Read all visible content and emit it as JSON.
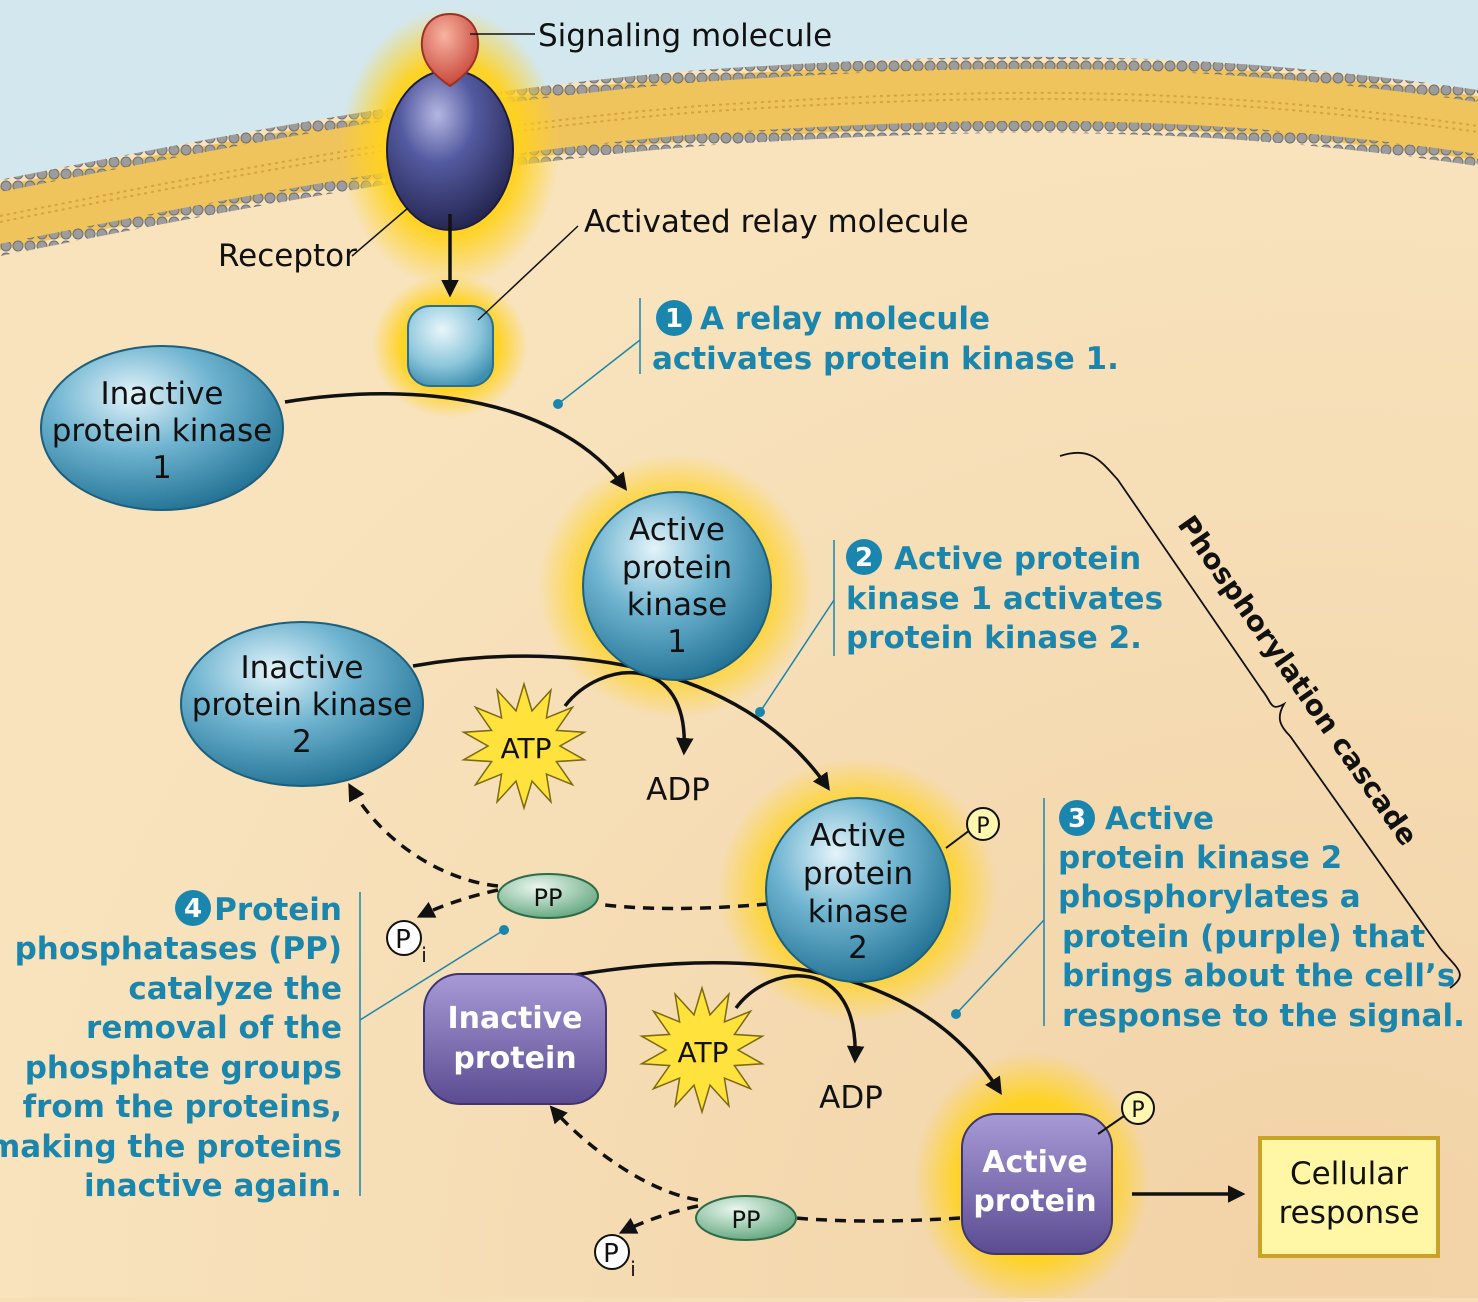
{
  "labels": {
    "signaling_molecule": "Signaling molecule",
    "receptor": "Receptor",
    "activated_relay": "Activated relay molecule",
    "inactive_pk1": [
      "Inactive",
      "protein kinase",
      "1"
    ],
    "active_pk1": [
      "Active",
      "protein",
      "kinase",
      "1"
    ],
    "inactive_pk2": [
      "Inactive",
      "protein kinase",
      "2"
    ],
    "active_pk2": [
      "Active",
      "protein",
      "kinase",
      "2"
    ],
    "inactive_protein": [
      "Inactive",
      "protein"
    ],
    "active_protein": [
      "Active",
      "protein"
    ],
    "atp": "ATP",
    "adp": "ADP",
    "pp": "PP",
    "p": "P",
    "pi_main": "P",
    "pi_sub": "i",
    "cellular_response": [
      "Cellular",
      "response"
    ],
    "cascade": "Phosphorylation cascade"
  },
  "steps": [
    {
      "num": "1",
      "lines": [
        "A relay molecule",
        "activates protein kinase 1."
      ]
    },
    {
      "num": "2",
      "lines": [
        "Active protein",
        "kinase 1 activates",
        "protein kinase 2."
      ]
    },
    {
      "num": "3",
      "lines": [
        "Active",
        "protein kinase 2",
        "phosphorylates a",
        "protein (purple) that",
        "brings about the cell’s",
        "response to the signal."
      ]
    },
    {
      "num": "4",
      "lines": [
        "Protein",
        "phosphatases (PP)",
        "catalyze the",
        "removal of the",
        "phosphate groups",
        "from the proteins,",
        "making the proteins",
        "inactive again."
      ]
    }
  ],
  "colors": {
    "cytoplasm": "#f6dfb6",
    "extracellular": "#d2e6ee",
    "membrane": "#f1c45a",
    "step_text": "#1a86ad",
    "kinase": "#4a9bbd",
    "protein": "#6e5fa6",
    "receptor": "#3a3c78",
    "signal": "#e06a55",
    "phosphatase": "#7fbf99",
    "glow": "#ffd21e",
    "response_box": "#fff6a6"
  }
}
